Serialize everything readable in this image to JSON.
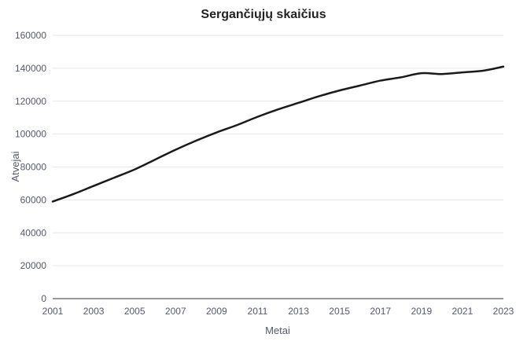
{
  "chart_data": {
    "type": "line",
    "title": "Sergančiųjų skaičius",
    "xlabel": "Metai",
    "ylabel": "Atvejai",
    "x": [
      2001,
      2002,
      2003,
      2004,
      2005,
      2006,
      2007,
      2008,
      2009,
      2010,
      2011,
      2012,
      2013,
      2014,
      2015,
      2016,
      2017,
      2018,
      2019,
      2020,
      2021,
      2022,
      2023
    ],
    "series": [
      {
        "values": [
          59000,
          63500,
          68500,
          73500,
          78500,
          84500,
          90500,
          96000,
          101000,
          105500,
          110500,
          115000,
          119000,
          123000,
          126500,
          129500,
          132500,
          134500,
          137000,
          136500,
          137500,
          138500,
          141000
        ],
        "color": "#1a1a1a"
      }
    ],
    "xticks": [
      "2001",
      "2003",
      "2005",
      "2007",
      "2009",
      "2011",
      "2013",
      "2015",
      "2017",
      "2019",
      "2021",
      "2023"
    ],
    "yticks": [
      "0",
      "20000",
      "40000",
      "60000",
      "80000",
      "100000",
      "120000",
      "140000",
      "160000"
    ],
    "xlim": [
      2001,
      2023
    ],
    "ylim": [
      0,
      160000
    ],
    "grid": true
  }
}
